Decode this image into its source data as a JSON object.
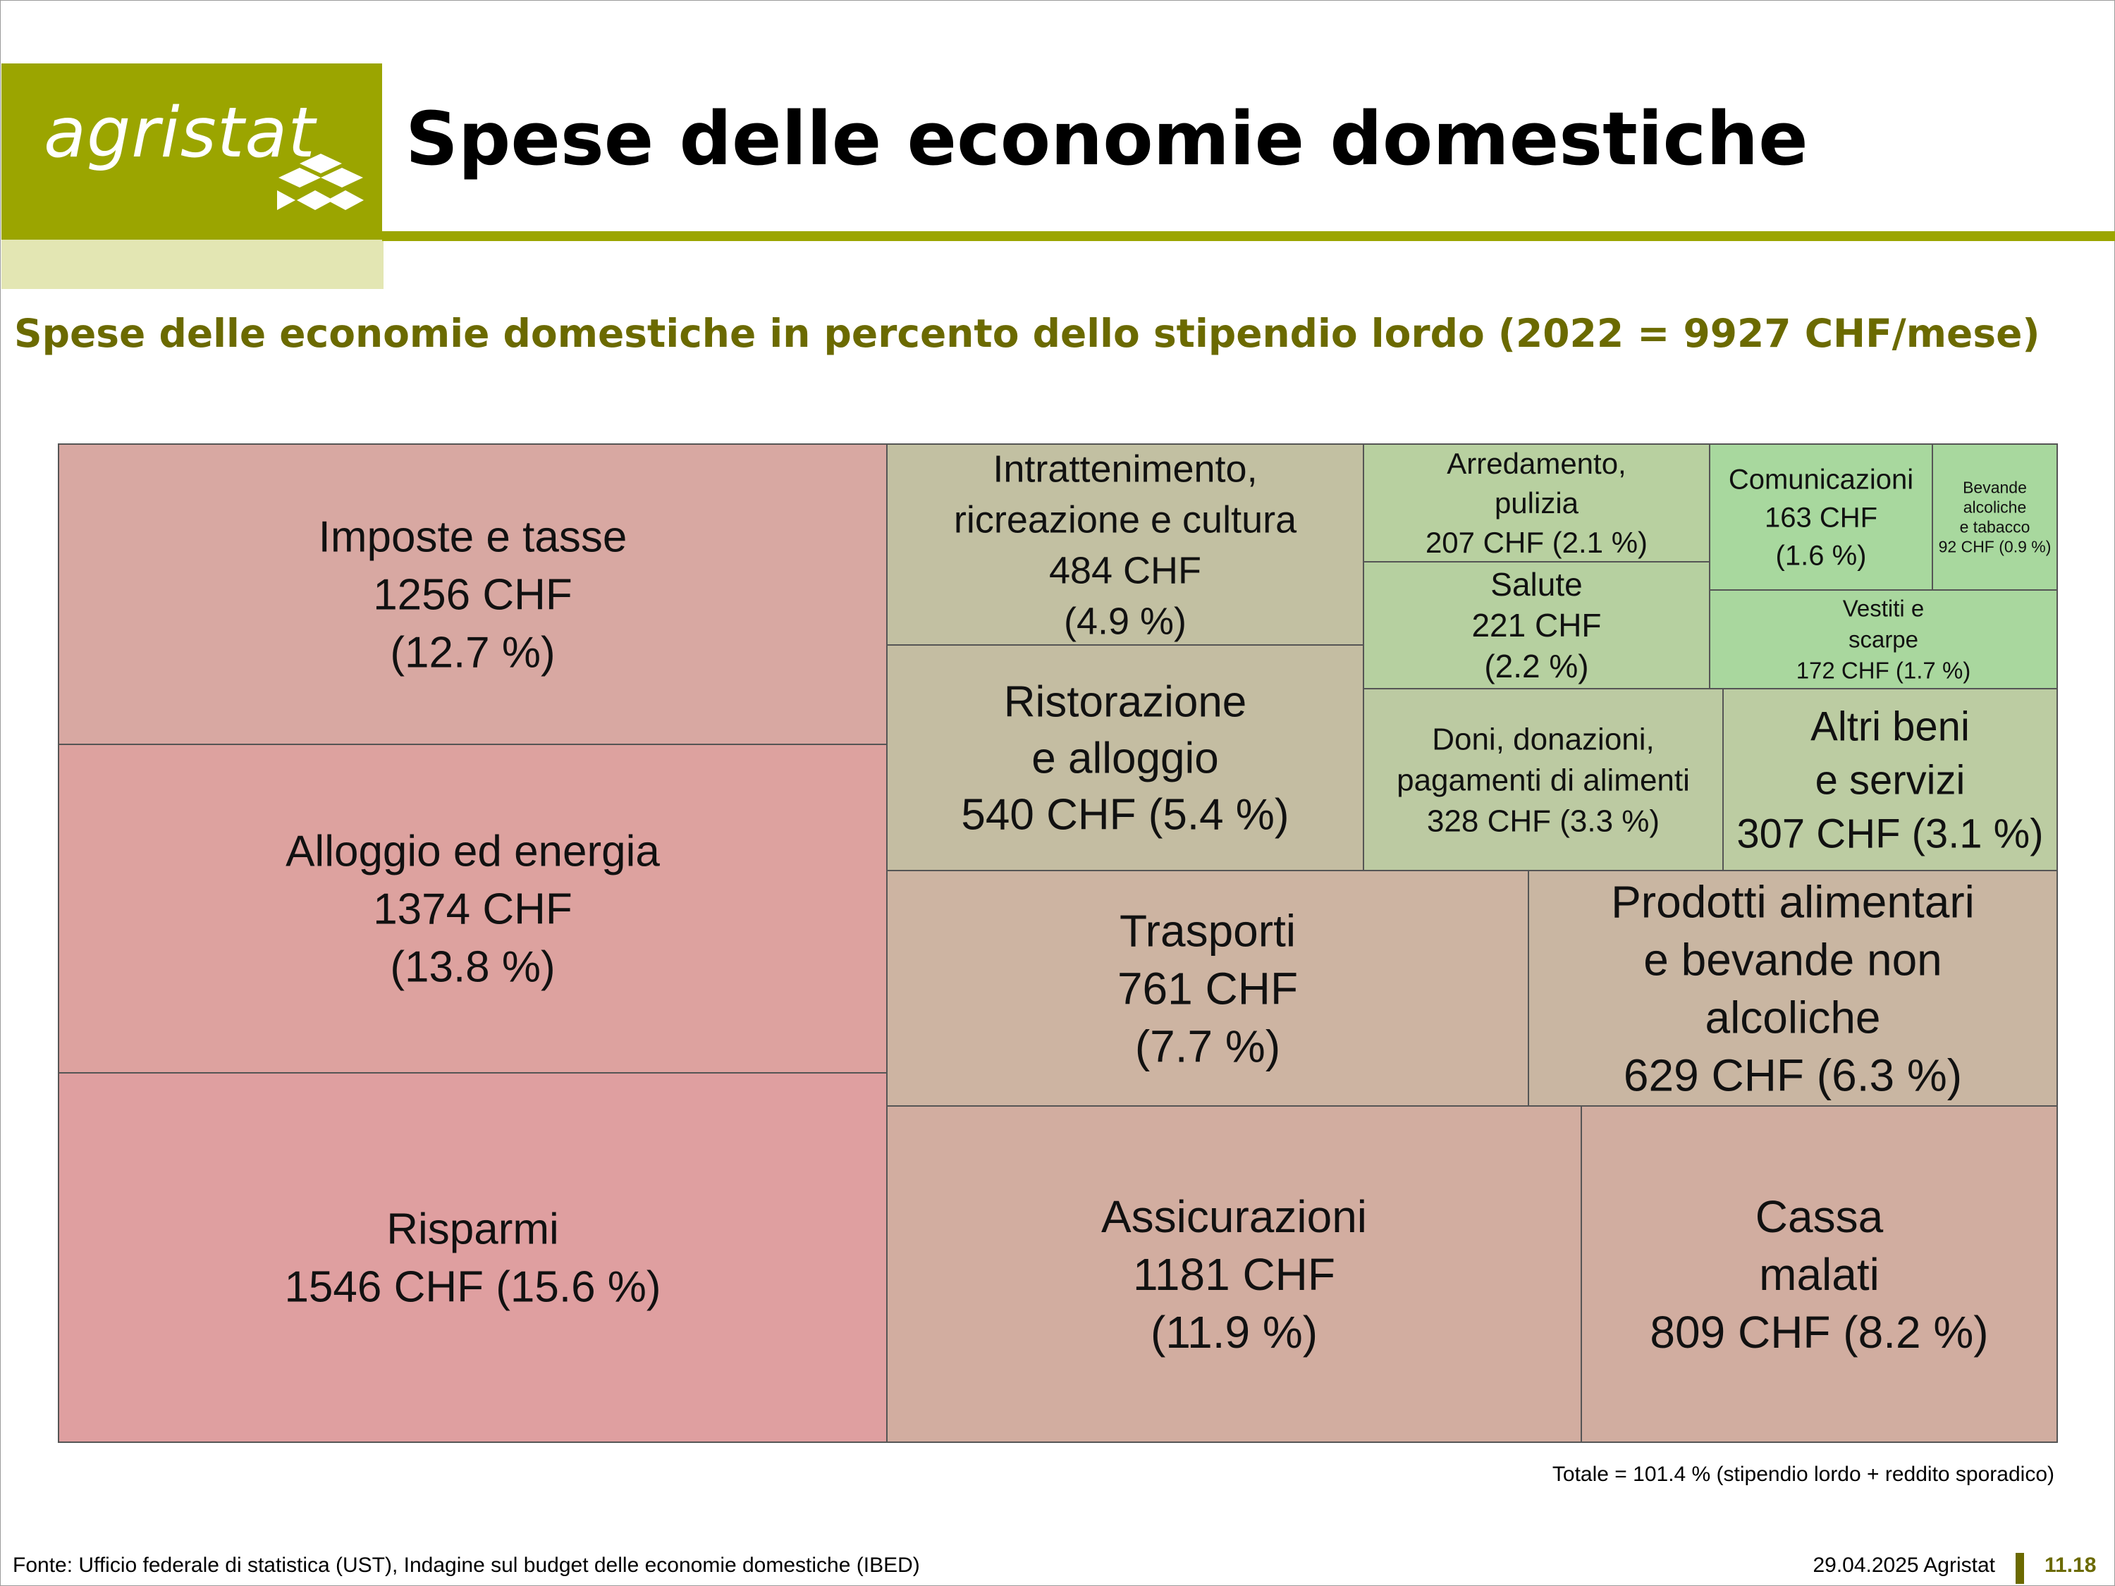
{
  "logo": {
    "text": "agristat"
  },
  "page_title": "Spese delle economie domestiche",
  "colors": {
    "brand": "#9ba500",
    "brand_light": "#e3e6b3",
    "subtitle": "#6b6a00",
    "border": "#555555"
  },
  "chart_data": {
    "type": "treemap",
    "title": "Spese delle economie domestiche in percento dello stipendio lordo (2022 = 9927 CHF/mese)",
    "unit": "CHF",
    "items": [
      {
        "label": "Imposte e tasse",
        "value": 1256,
        "percent": 12.7,
        "lines": [
          "Imposte e tasse",
          "1256 CHF",
          "(12.7 %)"
        ],
        "color": "#d8a8a2"
      },
      {
        "label": "Alloggio ed energia",
        "value": 1374,
        "percent": 13.8,
        "lines": [
          "Alloggio ed energia",
          "1374 CHF",
          "(13.8 %)"
        ],
        "color": "#dda29f"
      },
      {
        "label": "Risparmi",
        "value": 1546,
        "percent": 15.6,
        "lines": [
          "Risparmi",
          "1546 CHF (15.6 %)"
        ],
        "color": "#df9fa0"
      },
      {
        "label": "Intrattenimento, ricreazione e cultura",
        "value": 484,
        "percent": 4.9,
        "lines": [
          "Intrattenimento,",
          "ricreazione e cultura",
          "484 CHF",
          "(4.9 %)"
        ],
        "color": "#c2c0a2"
      },
      {
        "label": "Ristorazione e alloggio",
        "value": 540,
        "percent": 5.4,
        "lines": [
          "Ristorazione",
          "e alloggio",
          "540 CHF (5.4 %)"
        ],
        "color": "#c4bda2"
      },
      {
        "label": "Arredamento, pulizia",
        "value": 207,
        "percent": 2.1,
        "lines": [
          "Arredamento,",
          "pulizia",
          "207 CHF (2.1 %)"
        ],
        "color": "#b8d0a0"
      },
      {
        "label": "Salute",
        "value": 221,
        "percent": 2.2,
        "lines": [
          "Salute",
          "221 CHF",
          "(2.2 %)"
        ],
        "color": "#b6d0a0"
      },
      {
        "label": "Comunicazioni",
        "value": 163,
        "percent": 1.6,
        "lines": [
          "Comunicazioni",
          "163 CHF",
          "(1.6 %)"
        ],
        "color": "#a8d89e"
      },
      {
        "label": "Bevande alcoliche e tabacco",
        "value": 92,
        "percent": 0.9,
        "lines": [
          "Bevande",
          "alcoliche",
          "e tabacco",
          "92 CHF (0.9 %)"
        ],
        "color": "#a8d89e"
      },
      {
        "label": "Vestiti e scarpe",
        "value": 172,
        "percent": 1.7,
        "lines": [
          "Vestiti e",
          "scarpe",
          "172 CHF (1.7 %)"
        ],
        "color": "#a9d79e"
      },
      {
        "label": "Doni, donazioni, pagamenti di alimenti",
        "value": 328,
        "percent": 3.3,
        "lines": [
          "Doni, donazioni,",
          "pagamenti di alimenti",
          "328 CHF (3.3 %)"
        ],
        "color": "#bccaa2"
      },
      {
        "label": "Altri beni e servizi",
        "value": 307,
        "percent": 3.1,
        "lines": [
          "Altri beni",
          "e servizi",
          "307 CHF (3.1 %)"
        ],
        "color": "#bccca2"
      },
      {
        "label": "Trasporti",
        "value": 761,
        "percent": 7.7,
        "lines": [
          "Trasporti",
          "761 CHF",
          "(7.7 %)"
        ],
        "color": "#cdb4a2"
      },
      {
        "label": "Prodotti alimentari e bevande non alcoliche",
        "value": 629,
        "percent": 6.3,
        "lines": [
          "Prodotti alimentari",
          "e bevande non",
          "alcoliche",
          "629 CHF (6.3 %)"
        ],
        "color": "#c9b6a2"
      },
      {
        "label": "Assicurazioni",
        "value": 1181,
        "percent": 11.9,
        "lines": [
          "Assicurazioni",
          "1181 CHF",
          "(11.9 %)"
        ],
        "color": "#d2ada0"
      },
      {
        "label": "Cassa malati",
        "value": 809,
        "percent": 8.2,
        "lines": [
          "Cassa",
          "malati",
          "809 CHF (8.2 %)"
        ],
        "color": "#d1ada0"
      }
    ],
    "note": "Totale = 101.4 % (stipendio lordo + reddito sporadico)"
  },
  "footer": {
    "source": "Fonte: Ufficio federale di statistica (UST), Indagine sul budget delle economie domestiche (IBED)",
    "date": "29.04.2025 Agristat",
    "page": "11.18"
  }
}
